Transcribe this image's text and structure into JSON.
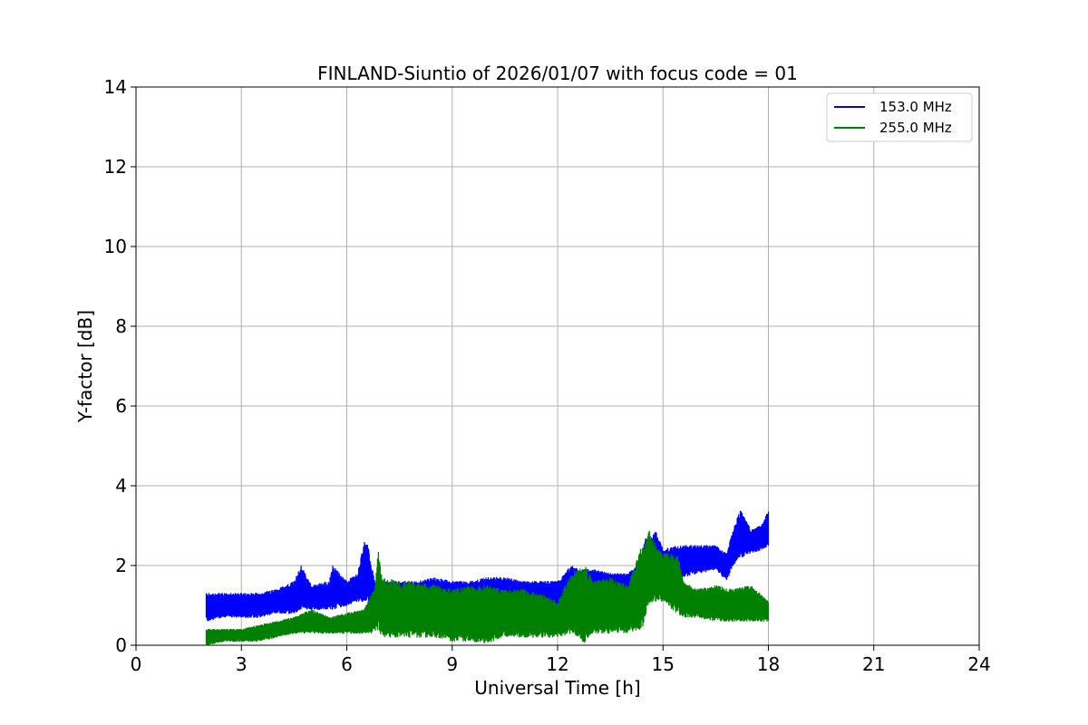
{
  "chart_data": {
    "type": "line",
    "title": "FINLAND-Siuntio of 2026/01/07 with focus code = 01",
    "xlabel": "Universal Time [h]",
    "ylabel": "Y-factor [dB]",
    "xlim": [
      0,
      24
    ],
    "ylim": [
      0,
      14
    ],
    "xticks": [
      "0",
      "3",
      "6",
      "9",
      "12",
      "15",
      "18",
      "21",
      "24"
    ],
    "yticks": [
      "0",
      "2",
      "4",
      "6",
      "8",
      "10",
      "12",
      "14"
    ],
    "grid": true,
    "legend_position": "top-right",
    "series": [
      {
        "name": "153.0 MHz",
        "color": "#0000ff",
        "x": [
          2.0,
          2.5,
          3.0,
          3.5,
          4.0,
          4.5,
          4.7,
          5.0,
          5.5,
          5.6,
          6.0,
          6.3,
          6.5,
          6.6,
          6.8,
          7.0,
          7.5,
          8.0,
          8.5,
          9.0,
          9.5,
          10.0,
          10.5,
          11.0,
          11.5,
          12.0,
          12.4,
          12.6,
          13.0,
          13.5,
          14.0,
          14.3,
          14.5,
          14.6,
          14.8,
          15.0,
          15.5,
          16.0,
          16.5,
          16.8,
          17.0,
          17.2,
          17.5,
          17.8,
          18.0
        ],
        "min": [
          0.6,
          0.7,
          0.7,
          0.7,
          0.8,
          0.8,
          0.9,
          0.9,
          0.9,
          0.9,
          1.0,
          1.1,
          1.1,
          1.1,
          0.8,
          0.9,
          0.9,
          0.9,
          0.9,
          0.9,
          0.9,
          1.0,
          1.0,
          1.0,
          1.0,
          1.0,
          1.2,
          1.2,
          1.3,
          1.3,
          1.3,
          1.4,
          1.4,
          1.8,
          1.7,
          1.7,
          1.7,
          1.8,
          1.9,
          1.6,
          2.0,
          2.2,
          2.3,
          2.4,
          2.5
        ],
        "max": [
          1.3,
          1.3,
          1.3,
          1.3,
          1.4,
          1.6,
          2.0,
          1.5,
          1.6,
          2.0,
          1.6,
          1.8,
          2.6,
          2.5,
          1.6,
          1.6,
          1.6,
          1.6,
          1.7,
          1.6,
          1.6,
          1.7,
          1.7,
          1.6,
          1.6,
          1.6,
          2.0,
          1.9,
          1.9,
          1.8,
          1.8,
          2.0,
          2.7,
          2.6,
          2.9,
          2.4,
          2.5,
          2.5,
          2.5,
          2.3,
          2.9,
          3.4,
          2.9,
          3.0,
          3.4
        ]
      },
      {
        "name": "255.0 MHz",
        "color": "#008000",
        "x": [
          2.0,
          2.5,
          3.0,
          3.5,
          4.0,
          4.5,
          5.0,
          5.5,
          6.0,
          6.5,
          6.8,
          6.9,
          7.0,
          7.5,
          8.0,
          8.5,
          9.0,
          9.5,
          10.0,
          10.5,
          11.0,
          11.5,
          12.0,
          12.4,
          12.8,
          13.0,
          13.5,
          14.0,
          14.4,
          14.6,
          14.8,
          15.0,
          15.4,
          15.6,
          16.0,
          16.5,
          17.0,
          17.5,
          18.0
        ],
        "min": [
          0.0,
          0.1,
          0.1,
          0.1,
          0.2,
          0.3,
          0.3,
          0.3,
          0.3,
          0.3,
          0.3,
          0.4,
          0.2,
          0.2,
          0.2,
          0.2,
          0.1,
          0.1,
          0.05,
          0.2,
          0.2,
          0.2,
          0.2,
          0.3,
          0.05,
          0.3,
          0.3,
          0.3,
          0.4,
          1.0,
          1.1,
          1.1,
          0.8,
          0.7,
          0.7,
          0.6,
          0.6,
          0.6,
          0.6
        ],
        "max": [
          0.4,
          0.4,
          0.4,
          0.5,
          0.6,
          0.7,
          0.9,
          0.7,
          0.8,
          0.9,
          1.5,
          2.4,
          1.7,
          1.6,
          1.6,
          1.5,
          1.4,
          1.5,
          1.5,
          1.4,
          1.4,
          1.3,
          1.1,
          1.8,
          2.0,
          1.6,
          1.7,
          1.5,
          2.5,
          2.9,
          2.5,
          2.3,
          2.3,
          1.6,
          1.4,
          1.5,
          1.4,
          1.5,
          1.1
        ]
      }
    ]
  }
}
